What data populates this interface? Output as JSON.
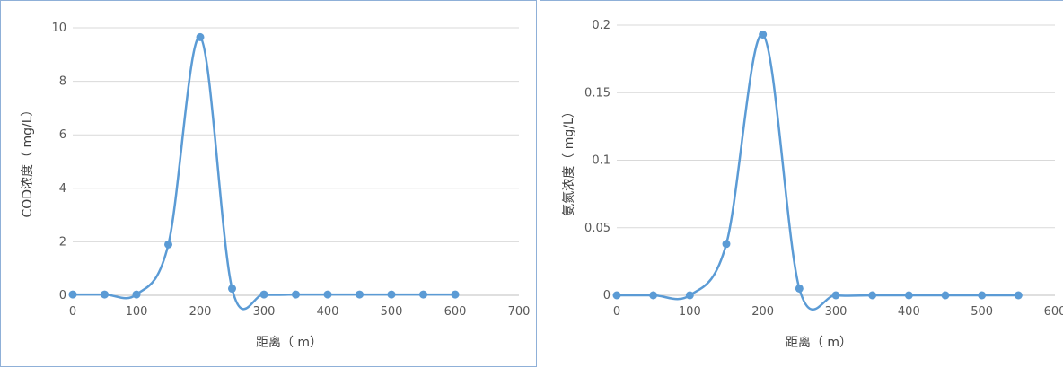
{
  "chart_data": [
    {
      "type": "line",
      "smooth": true,
      "markers": true,
      "color": "#5b9bd5",
      "xlabel": "距离（ m）",
      "ylabel": "COD浓度（ mg/L）",
      "xlim": [
        0,
        700
      ],
      "ylim": [
        0,
        10
      ],
      "x_ticks": [
        0,
        100,
        200,
        300,
        400,
        500,
        600,
        700
      ],
      "y_ticks": [
        0,
        2,
        4,
        6,
        8,
        10
      ],
      "grid": "horizontal",
      "x": [
        0,
        50,
        100,
        150,
        200,
        250,
        300,
        350,
        400,
        450,
        500,
        550,
        600
      ],
      "y": [
        0.03,
        0.03,
        0.03,
        1.9,
        9.65,
        0.25,
        0.03,
        0.03,
        0.03,
        0.03,
        0.03,
        0.03,
        0.03
      ]
    },
    {
      "type": "line",
      "smooth": true,
      "markers": true,
      "color": "#5b9bd5",
      "xlabel": "距离（ m）",
      "ylabel": "氨氮浓度（ mg/L）",
      "xlim": [
        0,
        600
      ],
      "ylim": [
        0,
        0.2
      ],
      "x_ticks": [
        "0",
        "100",
        "200",
        "300",
        "400",
        "500",
        "600"
      ],
      "y_ticks": [
        "0",
        "0.05",
        "0.1",
        "0.15",
        "0.2"
      ],
      "grid": "horizontal",
      "x": [
        0,
        50,
        100,
        150,
        200,
        250,
        300,
        350,
        400,
        450,
        500,
        550
      ],
      "y": [
        0.0,
        0.0,
        0.0,
        0.038,
        0.193,
        0.005,
        0.0,
        0.0,
        0.0,
        0.0,
        0.0,
        0.0
      ]
    }
  ]
}
